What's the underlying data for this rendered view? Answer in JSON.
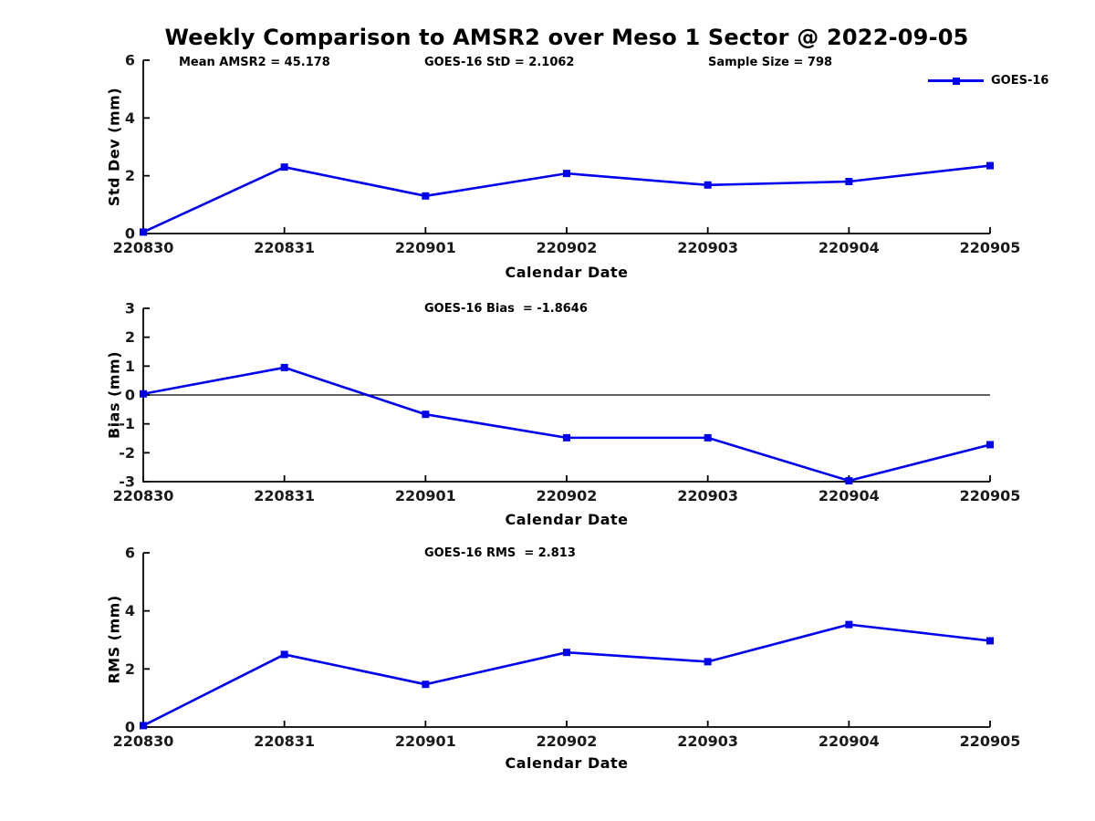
{
  "title": "Weekly Comparison to AMSR2 over Meso 1 Sector @ 2022-09-05",
  "legend": {
    "label": "GOES-16",
    "series_color": "#0000EE",
    "marker": "filled-square",
    "position": "top-right"
  },
  "chart_data": [
    {
      "type": "line",
      "subplot": "std-dev",
      "title": "",
      "categories": [
        "220830",
        "220831",
        "220901",
        "220902",
        "220903",
        "220904",
        "220905"
      ],
      "series": [
        {
          "name": "GOES-16",
          "values": [
            0.05,
            2.3,
            1.3,
            2.08,
            1.68,
            1.8,
            2.35
          ]
        }
      ],
      "xlabel": "Calendar Date",
      "ylabel": "Std Dev (mm)",
      "ylim": [
        0,
        6
      ],
      "yticks": [
        0,
        2,
        4,
        6
      ],
      "grid": false,
      "zero_line": false,
      "line_color": "#0000EE",
      "annotations": [
        "Mean AMSR2 = 45.178",
        "GOES-16 StD = 2.1062",
        "Sample Size = 798"
      ]
    },
    {
      "type": "line",
      "subplot": "bias",
      "title": "",
      "categories": [
        "220830",
        "220831",
        "220901",
        "220902",
        "220903",
        "220904",
        "220905"
      ],
      "series": [
        {
          "name": "GOES-16",
          "values": [
            0.04,
            0.95,
            -0.67,
            -1.48,
            -1.48,
            -2.97,
            -1.72
          ]
        }
      ],
      "xlabel": "Calendar Date",
      "ylabel": "Bias (mm)",
      "ylim": [
        -3,
        3
      ],
      "yticks": [
        -3,
        -2,
        -1,
        0,
        1,
        2,
        3
      ],
      "grid": false,
      "zero_line": true,
      "line_color": "#0000EE",
      "annotations": [
        "GOES-16 Bias  = -1.8646"
      ]
    },
    {
      "type": "line",
      "subplot": "rms",
      "title": "",
      "categories": [
        "220830",
        "220831",
        "220901",
        "220902",
        "220903",
        "220904",
        "220905"
      ],
      "series": [
        {
          "name": "GOES-16",
          "values": [
            0.05,
            2.5,
            1.47,
            2.57,
            2.25,
            3.53,
            2.97
          ]
        }
      ],
      "xlabel": "Calendar Date",
      "ylabel": "RMS (mm)",
      "ylim": [
        0,
        6
      ],
      "yticks": [
        0,
        2,
        4,
        6
      ],
      "grid": false,
      "zero_line": false,
      "line_color": "#0000EE",
      "annotations": [
        "GOES-16 RMS  = 2.813"
      ]
    }
  ]
}
